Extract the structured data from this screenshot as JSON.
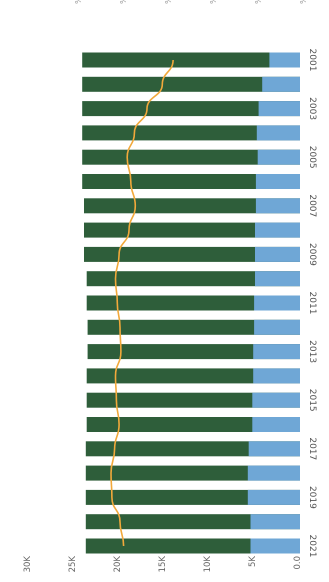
{
  "chart_data": {
    "type": "bar",
    "orientation": "horizontal-rotated",
    "categories": [
      "2001",
      "2002",
      "2003",
      "2004",
      "2005",
      "2006",
      "2007",
      "2008",
      "2009",
      "2010",
      "2011",
      "2012",
      "2013",
      "2014",
      "2015",
      "2016",
      "2017",
      "2018",
      "2019",
      "2020",
      "2021"
    ],
    "year_labels_shown": [
      "2001",
      "2003",
      "2005",
      "2007",
      "2009",
      "2011",
      "2013",
      "2015",
      "2017",
      "2019",
      "2021"
    ],
    "series": [
      {
        "values": [
          24200,
          24200,
          24200,
          24200,
          24200,
          24200,
          24000,
          24000,
          24000,
          23700,
          23700,
          23600,
          23600,
          23700,
          23700,
          23700,
          23800,
          23800,
          23800,
          23800,
          23800
        ],
        "color": "#2e5e3a"
      },
      {
        "values": [
          3400,
          4200,
          4600,
          4800,
          4700,
          4900,
          4900,
          5000,
          5000,
          5000,
          5100,
          5100,
          5200,
          5200,
          5300,
          5300,
          5700,
          5800,
          5800,
          5500,
          5500
        ],
        "color": "#6fa7d6"
      },
      {
        "type": "line",
        "axis": "secondary",
        "values": [
          14.1,
          15.3,
          17.0,
          18.4,
          19.2,
          18.8,
          18.3,
          19.0,
          20.1,
          20.5,
          20.3,
          20.0,
          19.9,
          20.5,
          20.4,
          20.1,
          20.6,
          21.0,
          20.9,
          20.0,
          19.6
        ],
        "color": "#f2a93b"
      }
    ],
    "y_axis": {
      "ticks": [
        "0.0",
        "5K",
        "10K",
        "15K",
        "20K",
        "25K",
        "30K"
      ],
      "ylim": [
        0,
        30000
      ]
    },
    "y2_axis": {
      "ticks": [
        "0 %",
        "5 %",
        "10 %",
        "15 %",
        "20 %",
        "25 %"
      ],
      "ylim": [
        0,
        30
      ]
    },
    "grid": false
  }
}
